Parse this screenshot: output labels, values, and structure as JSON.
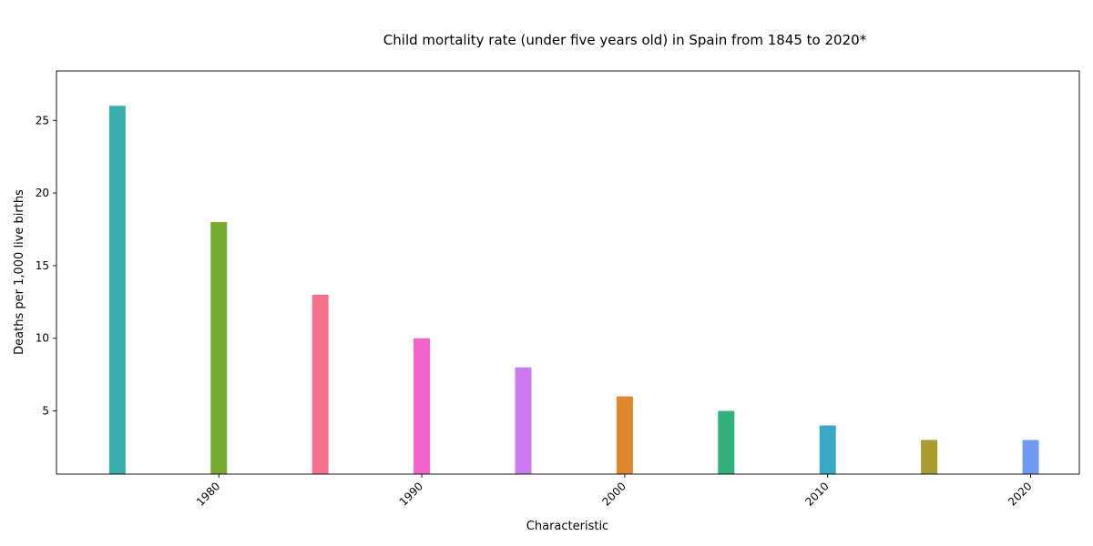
{
  "chart_data": {
    "type": "bar",
    "title": "Child mortality rate (under five years old) in Spain from 1845 to 2020*",
    "xlabel": "Characteristic",
    "ylabel": "Deaths per 1,000 live births",
    "x": [
      1975,
      1980,
      1985,
      1990,
      1995,
      2000,
      2005,
      2010,
      2015,
      2020
    ],
    "values": [
      26,
      18,
      13,
      10,
      8,
      6,
      5,
      4,
      3,
      3
    ],
    "colors": [
      "#3aafa9",
      "#77ac30",
      "#f4728a",
      "#f266cc",
      "#cc7af0",
      "#e0862f",
      "#32b07a",
      "#38a8c6",
      "#ab9b30",
      "#6e9af3"
    ],
    "xticks": [
      1980,
      1990,
      2000,
      2010,
      2020
    ],
    "yticks": [
      5,
      10,
      15,
      20,
      25
    ],
    "xlim": [
      1972,
      2022.4
    ],
    "ylim": [
      0.65,
      28.4
    ],
    "grid": false,
    "legend": "none"
  }
}
